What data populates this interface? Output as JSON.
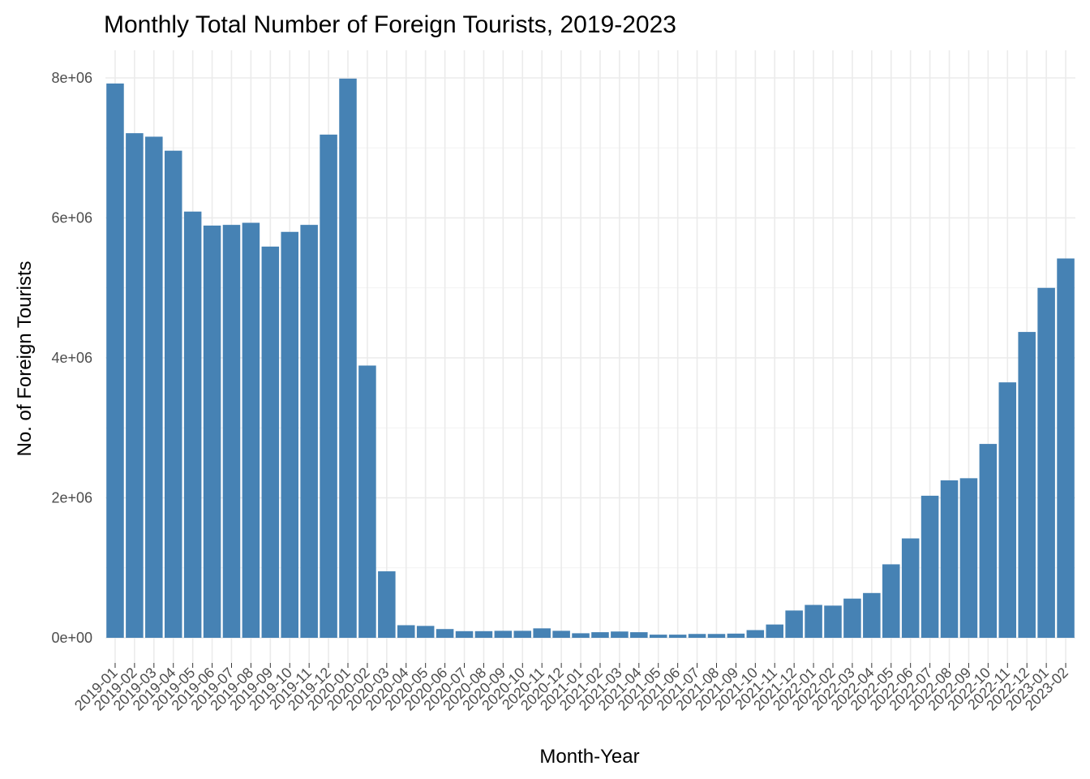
{
  "chart_data": {
    "type": "bar",
    "title": "Monthly Total Number of Foreign Tourists, 2019-2023",
    "xlabel": "Month-Year",
    "ylabel": "No. of Foreign Tourists",
    "ylim": [
      0,
      8000000
    ],
    "yticks": [
      0,
      2000000,
      4000000,
      6000000,
      8000000
    ],
    "ytick_labels": [
      "0e+00",
      "2e+06",
      "4e+06",
      "6e+06",
      "8e+06"
    ],
    "grid": true,
    "bar_color": "#4682B4",
    "categories": [
      "2019-01",
      "2019-02",
      "2019-03",
      "2019-04",
      "2019-05",
      "2019-06",
      "2019-07",
      "2019-08",
      "2019-09",
      "2019-10",
      "2019-11",
      "2019-12",
      "2020-01",
      "2020-02",
      "2020-03",
      "2020-04",
      "2020-05",
      "2020-06",
      "2020-07",
      "2020-08",
      "2020-09",
      "2020-10",
      "2020-11",
      "2020-12",
      "2021-01",
      "2021-02",
      "2021-03",
      "2021-04",
      "2021-05",
      "2021-06",
      "2021-07",
      "2021-08",
      "2021-09",
      "2021-10",
      "2021-11",
      "2021-12",
      "2022-01",
      "2022-02",
      "2022-03",
      "2022-04",
      "2022-05",
      "2022-06",
      "2022-07",
      "2022-08",
      "2022-09",
      "2022-10",
      "2022-11",
      "2022-12",
      "2023-01",
      "2023-02"
    ],
    "values": [
      7920000,
      7210000,
      7160000,
      6960000,
      6090000,
      5890000,
      5900000,
      5930000,
      5590000,
      5800000,
      5900000,
      7190000,
      7990000,
      3890000,
      950000,
      180000,
      170000,
      125000,
      95000,
      95000,
      100000,
      100000,
      135000,
      100000,
      65000,
      80000,
      90000,
      80000,
      45000,
      45000,
      55000,
      55000,
      60000,
      110000,
      190000,
      390000,
      470000,
      460000,
      560000,
      640000,
      1050000,
      1420000,
      2030000,
      2250000,
      2280000,
      2770000,
      3650000,
      4370000,
      5000000,
      5420000
    ]
  }
}
